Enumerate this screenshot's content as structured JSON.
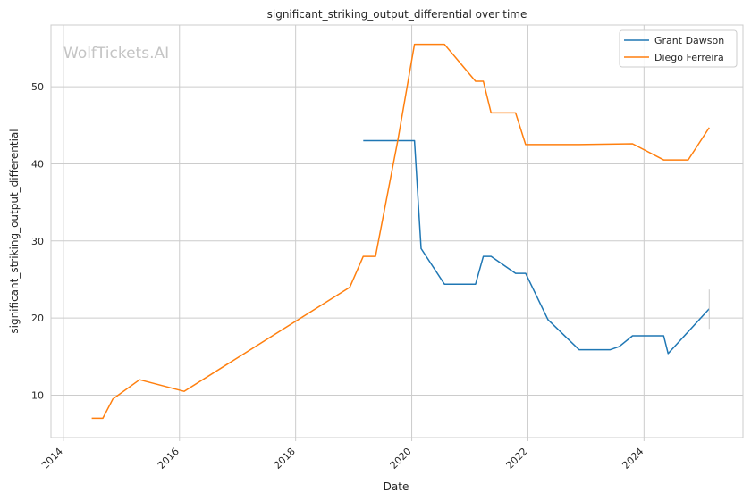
{
  "chart_data": {
    "type": "line",
    "title": "significant_striking_output_differential over time",
    "xlabel": "Date",
    "ylabel": "significant_striking_output_differential",
    "x_ticks": [
      "2014",
      "2016",
      "2018",
      "2020",
      "2022",
      "2024"
    ],
    "y_ticks": [
      "10",
      "20",
      "30",
      "40",
      "50"
    ],
    "xlim": [
      "2013-10-15",
      "2025-09-15"
    ],
    "ylim": [
      4.5,
      58
    ],
    "grid": true,
    "legend_position": "top-right",
    "watermark": "WolfTickets.AI",
    "series": [
      {
        "name": "Grant Dawson",
        "color": "#1f77b4",
        "points": [
          [
            "2019-03-02",
            43.0
          ],
          [
            "2020-01-18",
            43.0
          ],
          [
            "2020-02-29",
            29.0
          ],
          [
            "2020-07-25",
            24.4
          ],
          [
            "2021-02-06",
            24.4
          ],
          [
            "2021-03-27",
            28.0
          ],
          [
            "2021-05-15",
            28.0
          ],
          [
            "2021-10-16",
            25.8
          ],
          [
            "2021-12-18",
            25.8
          ],
          [
            "2022-05-07",
            19.8
          ],
          [
            "2022-11-19",
            15.9
          ],
          [
            "2023-06-03",
            15.9
          ],
          [
            "2023-07-29",
            16.3
          ],
          [
            "2023-10-21",
            17.7
          ],
          [
            "2024-05-04",
            17.7
          ],
          [
            "2024-06-01",
            15.4
          ],
          [
            "2025-02-15",
            21.2
          ]
        ],
        "end_marker_range": [
          18.6,
          23.7
        ]
      },
      {
        "name": "Diego Ferreira",
        "color": "#ff7f0e",
        "points": [
          [
            "2014-06-28",
            7.0
          ],
          [
            "2014-09-06",
            7.0
          ],
          [
            "2014-11-08",
            9.5
          ],
          [
            "2015-04-25",
            12.0
          ],
          [
            "2016-01-30",
            10.5
          ],
          [
            "2018-12-08",
            24.0
          ],
          [
            "2019-03-02",
            28.0
          ],
          [
            "2019-05-18",
            28.0
          ],
          [
            "2019-10-05",
            43.0
          ],
          [
            "2020-01-18",
            55.5
          ],
          [
            "2020-07-25",
            55.5
          ],
          [
            "2021-02-06",
            50.7
          ],
          [
            "2021-03-27",
            50.7
          ],
          [
            "2021-05-15",
            46.6
          ],
          [
            "2021-10-16",
            46.6
          ],
          [
            "2021-12-18",
            42.5
          ],
          [
            "2022-11-19",
            42.5
          ],
          [
            "2023-10-21",
            42.6
          ],
          [
            "2024-05-04",
            40.5
          ],
          [
            "2024-10-05",
            40.5
          ],
          [
            "2025-02-15",
            44.7
          ]
        ]
      }
    ]
  }
}
